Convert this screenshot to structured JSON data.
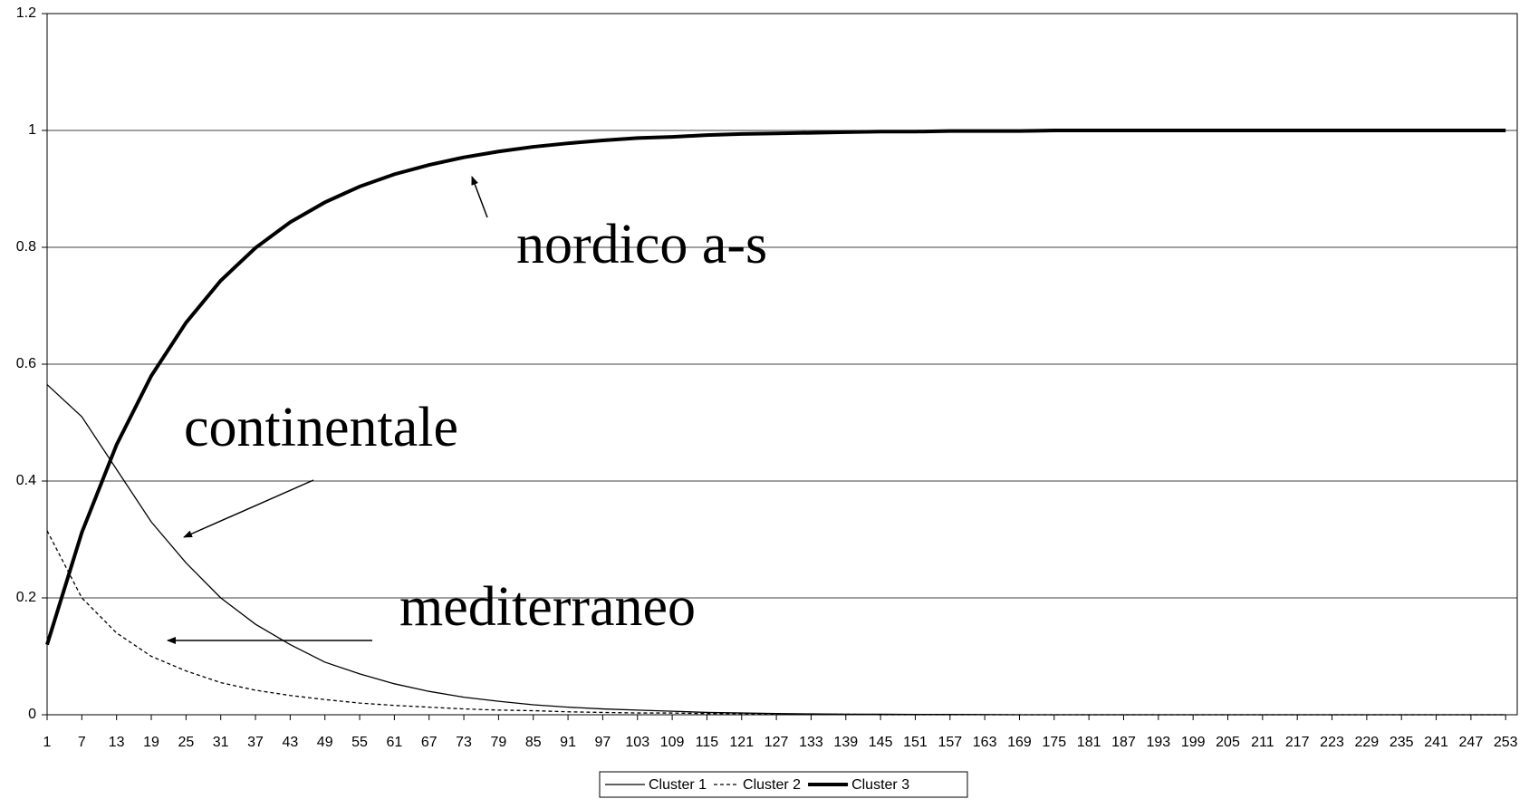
{
  "chart_data": {
    "type": "line",
    "x": [
      1,
      7,
      13,
      19,
      25,
      31,
      37,
      43,
      49,
      55,
      61,
      67,
      73,
      79,
      85,
      91,
      97,
      103,
      109,
      115,
      121,
      127,
      133,
      139,
      145,
      151,
      157,
      163,
      169,
      175,
      181,
      187,
      193,
      199,
      205,
      211,
      217,
      223,
      229,
      235,
      241,
      247,
      253
    ],
    "xlim": [
      1,
      255
    ],
    "xticks": [
      1,
      7,
      13,
      19,
      25,
      31,
      37,
      43,
      49,
      55,
      61,
      67,
      73,
      79,
      85,
      91,
      97,
      103,
      109,
      115,
      121,
      127,
      133,
      139,
      145,
      151,
      157,
      163,
      169,
      175,
      181,
      187,
      193,
      199,
      205,
      211,
      217,
      223,
      229,
      235,
      241,
      247,
      253
    ],
    "ylim": [
      0,
      1.2
    ],
    "yticks": [
      0,
      0.2,
      0.4,
      0.6,
      0.8,
      1,
      1.2
    ],
    "grid": true,
    "legend": "bottom",
    "series": [
      {
        "name": "Cluster 1",
        "color": "#000000",
        "style": "solid",
        "width": 1.3,
        "values": [
          0.565,
          0.51,
          0.42,
          0.33,
          0.26,
          0.2,
          0.155,
          0.12,
          0.09,
          0.07,
          0.053,
          0.04,
          0.03,
          0.023,
          0.017,
          0.013,
          0.01,
          0.008,
          0.006,
          0.004,
          0.003,
          0.002,
          0.0015,
          0.001,
          0.001,
          0.0005,
          0.0005,
          0.0003,
          0,
          0,
          0,
          0,
          0,
          0,
          0,
          0,
          0,
          0,
          0,
          0,
          0,
          0,
          0
        ]
      },
      {
        "name": "Cluster 2",
        "color": "#000000",
        "style": "dotted",
        "width": 1.3,
        "values": [
          0.315,
          0.2,
          0.14,
          0.1,
          0.075,
          0.055,
          0.042,
          0.033,
          0.026,
          0.02,
          0.016,
          0.013,
          0.01,
          0.008,
          0.007,
          0.005,
          0.004,
          0.003,
          0.003,
          0.002,
          0.002,
          0.001,
          0.001,
          0.001,
          0,
          0,
          0,
          0,
          0,
          0,
          0,
          0,
          0,
          0,
          0,
          0,
          0,
          0,
          0,
          0,
          0,
          0,
          0
        ]
      },
      {
        "name": "Cluster 3",
        "color": "#000000",
        "style": "solid",
        "width": 4,
        "values": [
          0.12,
          0.312,
          0.462,
          0.58,
          0.671,
          0.743,
          0.799,
          0.843,
          0.877,
          0.904,
          0.925,
          0.941,
          0.954,
          0.964,
          0.972,
          0.978,
          0.983,
          0.987,
          0.989,
          0.992,
          0.994,
          0.995,
          0.996,
          0.997,
          0.998,
          0.998,
          0.999,
          0.999,
          0.999,
          1,
          1,
          1,
          1,
          1,
          1,
          1,
          1,
          1,
          1,
          1,
          1,
          1,
          1
        ]
      }
    ],
    "annotations": [
      {
        "text": "nordico a-s"
      },
      {
        "text": "continentale"
      },
      {
        "text": "mediterraneo"
      }
    ]
  }
}
